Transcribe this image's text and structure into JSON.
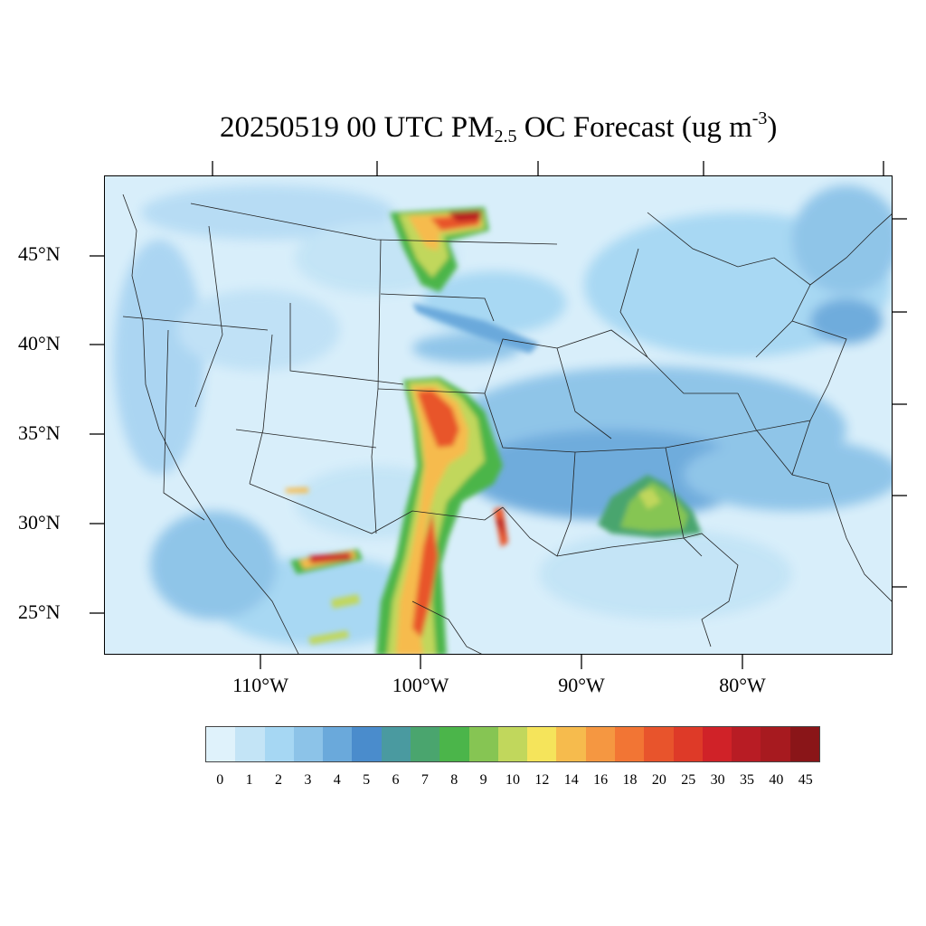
{
  "title": {
    "prefix": "20250519 00 UTC PM",
    "sub": "2.5",
    "middle": " OC Forecast (ug m",
    "sup": "-3",
    "suffix": ")"
  },
  "map": {
    "projection": "Lambert conformal (CONUS)",
    "latitude_labels": [
      "45°N",
      "40°N",
      "35°N",
      "30°N",
      "25°N"
    ],
    "longitude_labels": [
      "110°W",
      "100°W",
      "90°W",
      "80°W"
    ]
  },
  "colorbar": {
    "labels": [
      "0",
      "1",
      "2",
      "3",
      "4",
      "5",
      "6",
      "7",
      "8",
      "9",
      "10",
      "12",
      "14",
      "16",
      "18",
      "20",
      "25",
      "30",
      "35",
      "40",
      "45"
    ],
    "colors": [
      "#dff2fb",
      "#c3e4f6",
      "#a6d7f3",
      "#8cc3e8",
      "#6aa9db",
      "#4a8ccc",
      "#4a9aa0",
      "#4aa56e",
      "#4bb54a",
      "#86c553",
      "#c1d75c",
      "#f5e45b",
      "#f6bb4d",
      "#f59741",
      "#f27534",
      "#e8542c",
      "#de3a28",
      "#d02228",
      "#b81c24",
      "#a71a1f",
      "#8a1518"
    ]
  }
}
